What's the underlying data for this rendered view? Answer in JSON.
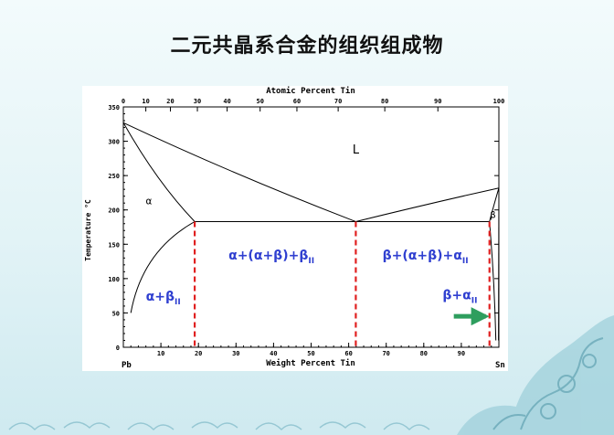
{
  "slide": {
    "title": "二元共晶系合金的组织组成物"
  },
  "chart_data": {
    "type": "diagram",
    "top_axis": {
      "label": "Atomic Percent Tin",
      "ticks": [
        "0",
        "10",
        "20",
        "30",
        "40",
        "50",
        "60",
        "70",
        "80",
        "90",
        "100"
      ]
    },
    "bottom_axis": {
      "label": "Weight Percent Tin",
      "ticks": [
        "0",
        "10",
        "20",
        "30",
        "40",
        "50",
        "60",
        "70",
        "80",
        "90",
        "100"
      ],
      "left_end": "Pb",
      "right_end": "Sn",
      "range": [
        0,
        100
      ]
    },
    "y_axis": {
      "label": "Temperature °C",
      "ticks": [
        "0",
        "50",
        "100",
        "150",
        "200",
        "250",
        "300",
        "350"
      ],
      "range": [
        0,
        350
      ]
    },
    "phase_labels": {
      "liquid": "L",
      "alpha": "α",
      "beta": "β"
    },
    "region_labels": {
      "alpha_plus_betaII": {
        "main": "α+β",
        "sub": "II"
      },
      "hypoeutectic": {
        "main": "α+(α+β)+β",
        "sub": "II"
      },
      "hypereutectic": {
        "main": "β+(α+β)+α",
        "sub": "II"
      },
      "beta_plus_alphaII": {
        "main": "β+α",
        "sub": "II"
      }
    },
    "key_points": {
      "pb_melting": {
        "wt": 0,
        "T": 327
      },
      "sn_melting": {
        "wt": 100,
        "T": 232
      },
      "eutectic": {
        "wt": 61.9,
        "T": 183
      },
      "alpha_max_solubility": {
        "wt": 19,
        "T": 183
      },
      "beta_max_solubility": {
        "wt": 97.5,
        "T": 183
      }
    },
    "marker_compositions_wt": [
      19,
      61.9,
      97.5
    ],
    "colors": {
      "region_label": "#2f3fd0",
      "marker_line": "#e02020",
      "arrow": "#2e9e5e"
    }
  }
}
